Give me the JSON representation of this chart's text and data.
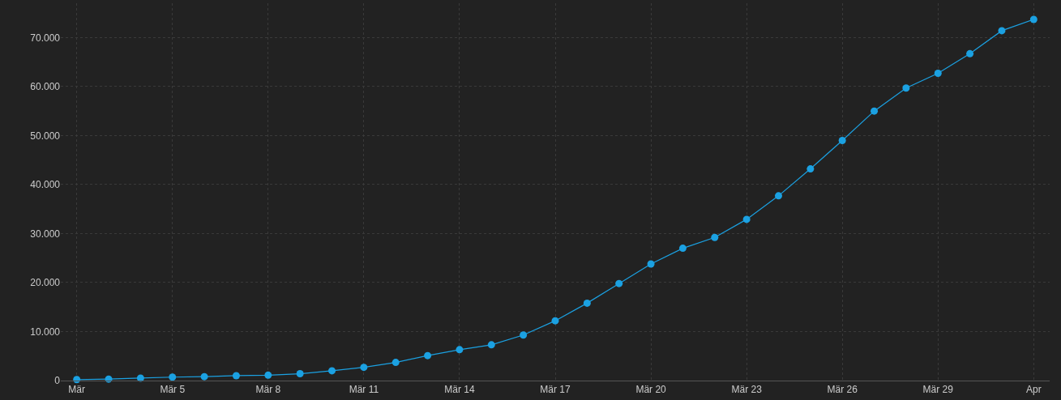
{
  "chart_data": {
    "type": "line",
    "x": [
      "--03-02",
      "--03-03",
      "--03-04",
      "--03-05",
      "--03-06",
      "--03-07",
      "--03-08",
      "--03-09",
      "--03-10",
      "--03-11",
      "--03-12",
      "--03-13",
      "--03-14",
      "--03-15",
      "--03-16",
      "--03-17",
      "--03-18",
      "--03-19",
      "--03-20",
      "--03-21",
      "--03-22",
      "--03-23",
      "--03-24",
      "--03-25",
      "--03-26",
      "--03-27",
      "--03-28",
      "--03-29",
      "--03-30",
      "--03-31",
      "--04-01"
    ],
    "series": [
      {
        "color": "#1ba1e2",
        "values": [
          200,
          300,
          500,
          700,
          800,
          1000,
          1100,
          1400,
          2000,
          2700,
          3700,
          5100,
          6300,
          7300,
          9300,
          12200,
          15800,
          19800,
          23800,
          27000,
          29200,
          32900,
          37700,
          43200,
          49000,
          55000,
          59700,
          62700,
          66700,
          71400,
          73700
        ]
      }
    ],
    "xlim": [
      "--03-01T12:00",
      "--04-01T12:00"
    ],
    "xticks": [
      {
        "value": "--03-02",
        "label": "Mär"
      },
      {
        "value": "--03-05",
        "label": "Mär 5"
      },
      {
        "value": "--03-08",
        "label": "Mär 8"
      },
      {
        "value": "--03-11",
        "label": "Mär 11"
      },
      {
        "value": "--03-14",
        "label": "Mär 14"
      },
      {
        "value": "--03-17",
        "label": "Mär 17"
      },
      {
        "value": "--03-20",
        "label": "Mär 20"
      },
      {
        "value": "--03-23",
        "label": "Mär 23"
      },
      {
        "value": "--03-26",
        "label": "Mär 26"
      },
      {
        "value": "--03-29",
        "label": "Mär 29"
      },
      {
        "value": "--04-01",
        "label": "Apr"
      }
    ],
    "ylim": [
      0,
      77000
    ],
    "yticks": [
      {
        "value": 0,
        "label": "0"
      },
      {
        "value": 10000,
        "label": "10.000"
      },
      {
        "value": 20000,
        "label": "20.000"
      },
      {
        "value": 30000,
        "label": "30.000"
      },
      {
        "value": 40000,
        "label": "40.000"
      },
      {
        "value": 50000,
        "label": "50.000"
      },
      {
        "value": 60000,
        "label": "60.000"
      },
      {
        "value": 70000,
        "label": "70.000"
      }
    ],
    "grid": true,
    "marker": "circle",
    "line_style": "solid"
  }
}
